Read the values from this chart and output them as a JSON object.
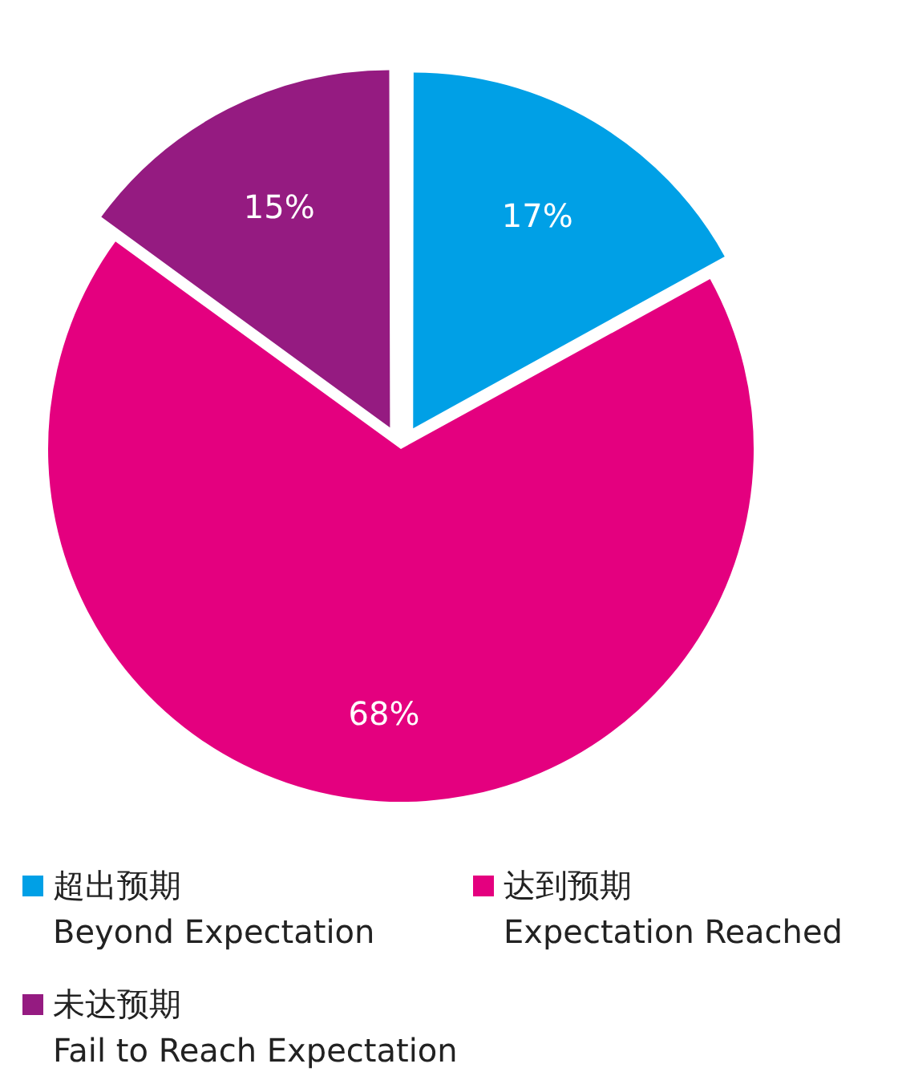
{
  "chart_data": {
    "type": "pie",
    "categories": [
      "超出预期\nBeyond Expectation",
      "达到预期\nExpectation Reached",
      "未达预期\nFail to Reach Expectation"
    ],
    "values": [
      17,
      68,
      15
    ],
    "value_labels": [
      "17%",
      "68%",
      "15%"
    ],
    "colors": [
      "#00a0e6",
      "#e4007f",
      "#951b81"
    ],
    "legend": "bottom"
  }
}
